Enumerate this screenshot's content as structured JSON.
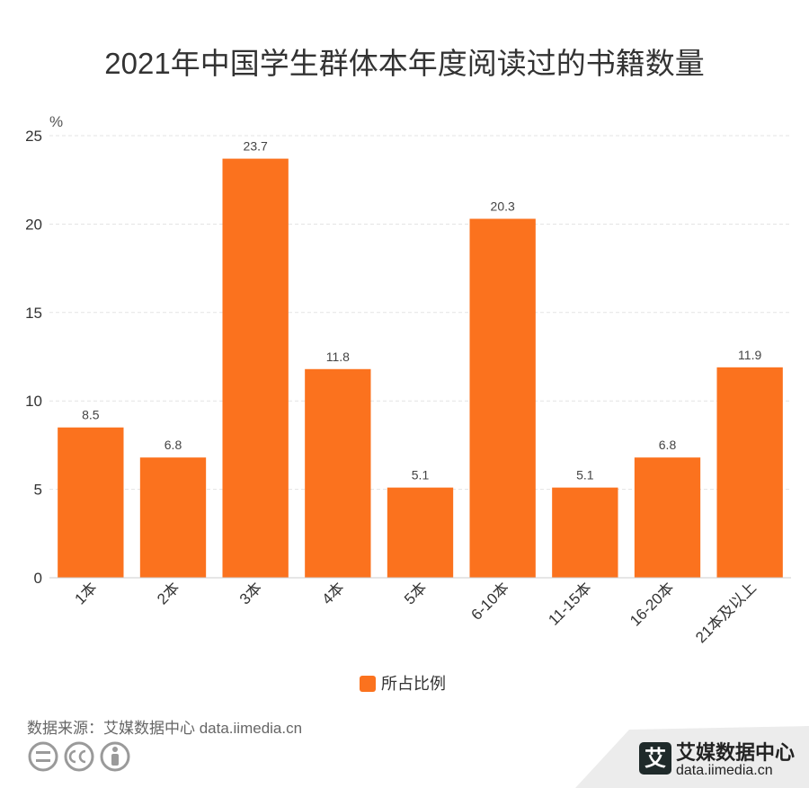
{
  "chart_data": {
    "type": "bar",
    "title": "2021年中国学生群体本年度阅读过的书籍数量",
    "unit_label": "%",
    "categories": [
      "1本",
      "2本",
      "3本",
      "4本",
      "5本",
      "6-10本",
      "11-15本",
      "16-20本",
      "21本及以上"
    ],
    "series": [
      {
        "name": "所占比例",
        "values": [
          8.5,
          6.8,
          23.7,
          11.8,
          5.1,
          20.3,
          5.1,
          6.8,
          11.9
        ]
      }
    ],
    "data_labels": [
      "8.5",
      "6.8",
      "23.7",
      "11.8",
      "5.1",
      "20.3",
      "5.1",
      "6.8",
      "11.9"
    ],
    "y_ticks": [
      "0",
      "5",
      "10",
      "15",
      "20",
      "25"
    ],
    "ylim": [
      0,
      25
    ],
    "grid": true,
    "legend_position": "bottom-center",
    "bar_color": "#FB721E"
  },
  "footer": {
    "source_text": "数据来源：艾媒数据中心 data.iimedia.cn",
    "cc_icons": [
      "equals-icon",
      "cc-icon",
      "person-icon"
    ]
  },
  "brand": {
    "logo_glyph": "艾",
    "name": "艾媒数据中心",
    "url": "data.iimedia.cn"
  }
}
